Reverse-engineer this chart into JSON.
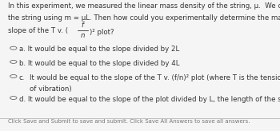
{
  "background_color": "#f5f5f5",
  "text_color": "#333333",
  "intro_line1": "In this experiment, we measured the linear mass density of the string, μ.  We could calculate the mass of",
  "intro_line2": "the string using m = μL. Then how could you experimentally determine the mass of the string using the",
  "intro_line3_pre": "slope of the T v. (f/n)² plot?",
  "option_a": "a. It would be equal to the slope divided by 2L",
  "option_b": "b. It would be equal to the slope divided by 4L",
  "option_c_label": "c.",
  "option_c_line1": "It would be equal to the slope of the T v. (f/n)² plot (where T is the tension and f is the frequency",
  "option_c_line2": "of vibration)",
  "option_d": "d. It would be equal to the slope of the plot divided by L, the length of the string",
  "footer": "Click Save and Submit to save and submit. Click Save All Answers to save all answers.",
  "font_size": 6.2,
  "small_font": 5.0
}
